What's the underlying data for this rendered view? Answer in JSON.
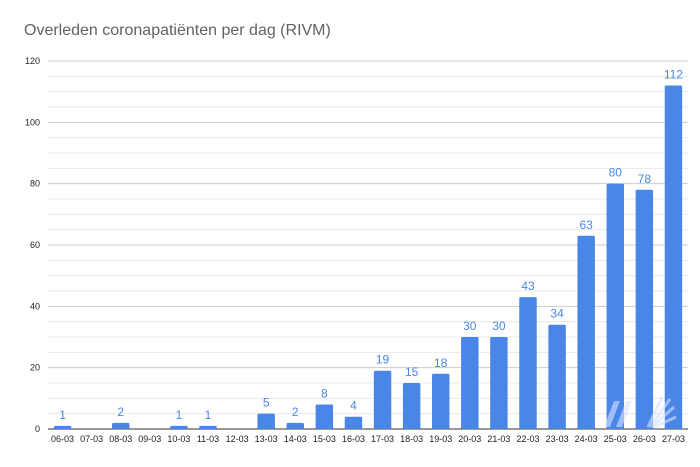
{
  "chart_data": {
    "type": "bar",
    "title": "Overleden coronapatiënten per dag (RIVM)",
    "xlabel": "",
    "ylabel": "",
    "ylim": [
      0,
      120
    ],
    "yticks": [
      0,
      20,
      40,
      60,
      80,
      100,
      120
    ],
    "grid": true,
    "bar_color": "#4a86e8",
    "categories": [
      "06-03",
      "07-03",
      "08-03",
      "09-03",
      "10-03",
      "11-03",
      "12-03",
      "13-03",
      "14-03",
      "15-03",
      "16-03",
      "17-03",
      "18-03",
      "19-03",
      "20-03",
      "21-03",
      "22-03",
      "23-03",
      "24-03",
      "25-03",
      "26-03",
      "27-03"
    ],
    "values": [
      1,
      0,
      2,
      0,
      1,
      1,
      0,
      5,
      2,
      8,
      4,
      19,
      15,
      18,
      30,
      30,
      43,
      34,
      63,
      80,
      78,
      112
    ],
    "data_labels": [
      "1",
      "",
      "2",
      "",
      "1",
      "1",
      "",
      "5",
      "2",
      "8",
      "4",
      "19",
      "15",
      "18",
      "30",
      "30",
      "43",
      "34",
      "63",
      "80",
      "78",
      "112"
    ]
  }
}
